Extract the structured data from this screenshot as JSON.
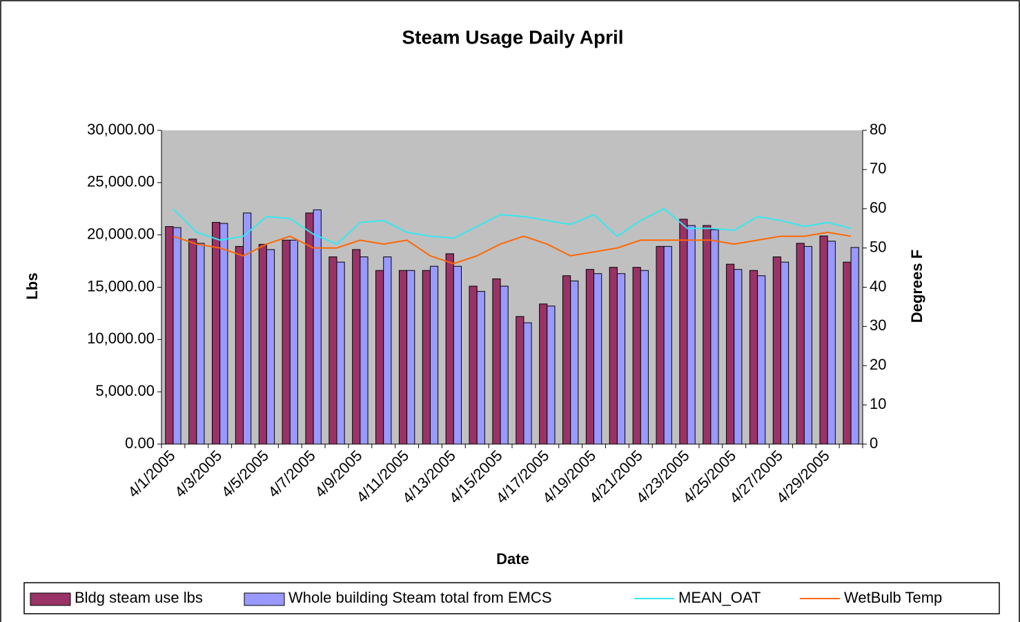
{
  "chart_data": {
    "type": "bar",
    "title": "Steam Usage Daily  April",
    "x_label": "Date",
    "y_label": "Lbs",
    "y2_label": "Degrees F",
    "categories": [
      "4/1/2005",
      null,
      "4/3/2005",
      null,
      "4/5/2005",
      null,
      "4/7/2005",
      null,
      "4/9/2005",
      null,
      "4/11/2005",
      null,
      "4/13/2005",
      null,
      "4/15/2005",
      null,
      "4/17/2005",
      null,
      "4/19/2005",
      null,
      "4/21/2005",
      null,
      "4/23/2005",
      null,
      "4/25/2005",
      null,
      "4/27/2005",
      null,
      "4/29/2005",
      null
    ],
    "series": [
      {
        "name": "Bldg steam use lbs",
        "color": "#993366",
        "type": "bar",
        "values": [
          20800,
          19600,
          21200,
          18900,
          19100,
          19500,
          22100,
          17900,
          18600,
          16600,
          16600,
          16600,
          18200,
          15100,
          15800,
          12200,
          13400,
          16100,
          16700,
          16900,
          16900,
          18900,
          21500,
          20900,
          17200,
          16600,
          17900,
          19200,
          19900,
          17400
        ]
      },
      {
        "name": "Whole building Steam total from EMCS",
        "color": "#9999ff",
        "type": "bar",
        "values": [
          20700,
          19200,
          21100,
          22100,
          18600,
          19500,
          22400,
          17400,
          17900,
          17900,
          16600,
          17000,
          17000,
          14600,
          15100,
          11600,
          13200,
          15600,
          16300,
          16300,
          16600,
          18900,
          20900,
          20500,
          16700,
          16100,
          17400,
          18900,
          19400,
          18800
        ]
      },
      {
        "name": "MEAN_OAT",
        "color": "#33e8f0",
        "type": "line",
        "axis": "y2",
        "values": [
          60,
          54,
          52,
          53,
          58,
          57.5,
          53.5,
          51,
          56.5,
          57,
          54,
          53,
          52.5,
          55.5,
          58.5,
          58,
          57,
          56,
          58.5,
          53,
          57,
          60,
          55,
          55,
          54.5,
          58,
          57,
          55.5,
          56.5,
          55
        ]
      },
      {
        "name": "WetBulb Temp",
        "color": "#ff6600",
        "type": "line",
        "axis": "y2",
        "values": [
          53,
          51,
          50,
          48,
          51,
          53,
          50,
          50,
          52,
          51,
          52,
          48,
          46,
          48,
          51,
          53,
          51,
          48,
          49,
          50,
          52,
          52,
          52,
          52,
          51,
          52,
          53,
          53,
          54,
          53
        ]
      }
    ],
    "ylim": [
      0,
      30000
    ],
    "yticks": [
      {
        "value": 0,
        "label": "0.00"
      },
      {
        "value": 5000,
        "label": "5,000.00"
      },
      {
        "value": 10000,
        "label": "10,000.00"
      },
      {
        "value": 15000,
        "label": "15,000.00"
      },
      {
        "value": 20000,
        "label": "20,000.00"
      },
      {
        "value": 25000,
        "label": "25,000.00"
      },
      {
        "value": 30000,
        "label": "30,000.00"
      }
    ],
    "y2lim": [
      0,
      80
    ],
    "y2ticks": [
      0,
      10,
      20,
      30,
      40,
      50,
      60,
      70,
      80
    ],
    "plot_background": "#c0c0c0"
  }
}
